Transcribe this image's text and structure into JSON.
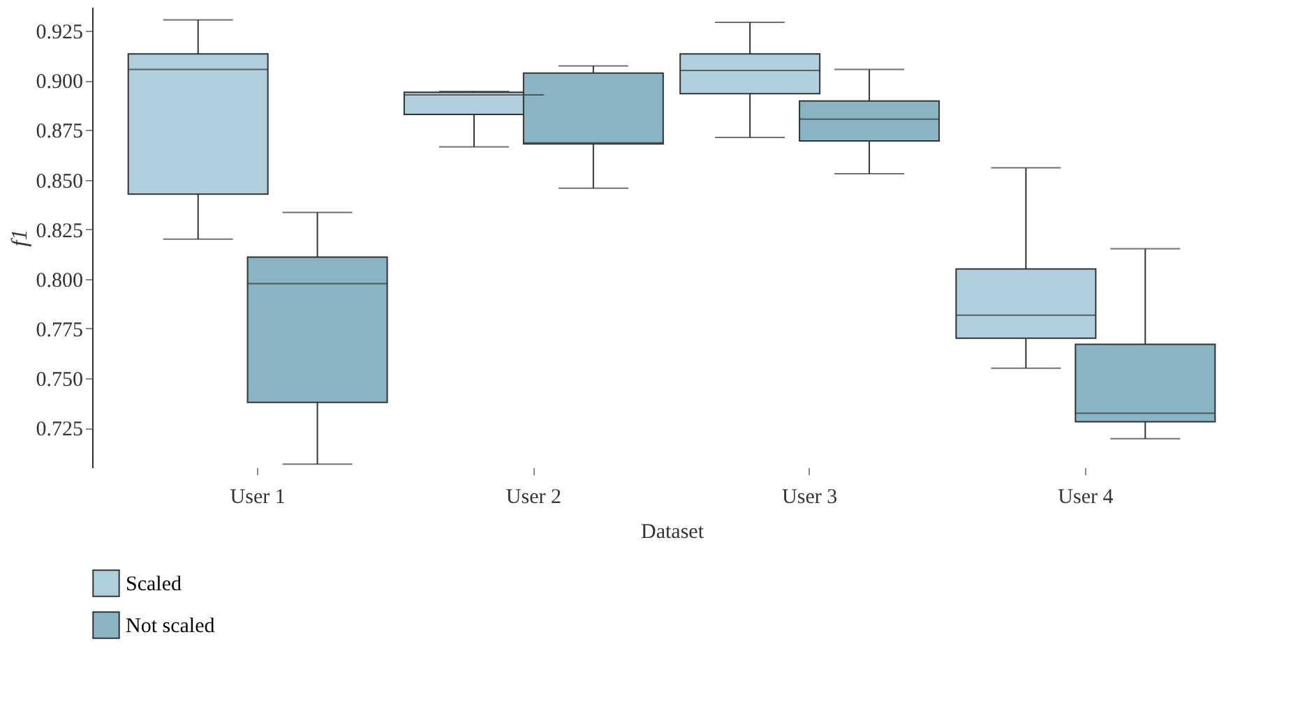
{
  "chart_data": {
    "type": "box",
    "xlabel": "Dataset",
    "ylabel": "f1",
    "categories": [
      "User 1",
      "User 2",
      "User 3",
      "User 4"
    ],
    "ylim": [
      0.705,
      0.937
    ],
    "yticks": [
      0.725,
      {
        "value": 0.75,
        "label": "0.750"
      },
      0.775,
      {
        "value": 0.8,
        "label": "0.800"
      },
      0.825,
      {
        "value": 0.85,
        "label": "0.850"
      },
      0.875,
      {
        "value": 0.9,
        "label": "0.900"
      },
      0.925
    ],
    "grid": false,
    "legend": "bottom left",
    "series": [
      {
        "name": "Scaled",
        "color": "#aecfdb",
        "boxes": [
          {
            "low": 0.82,
            "q1": 0.8427,
            "median": 0.9055,
            "q3": 0.9134,
            "high": 0.9305
          },
          {
            "low": 0.8665,
            "q1": 0.8829,
            "median": 0.8927,
            "q3": 0.894,
            "high": 0.8945
          },
          {
            "low": 0.8713,
            "q1": 0.8933,
            "median": 0.905,
            "q3": 0.9134,
            "high": 0.9293
          },
          {
            "low": 0.755,
            "q1": 0.7701,
            "median": 0.7817,
            "q3": 0.805,
            "high": 0.856
          }
        ]
      },
      {
        "name": "Not scaled",
        "color": "#88b4c4",
        "boxes": [
          {
            "low": 0.7067,
            "q1": 0.7378,
            "median": 0.7976,
            "q3": 0.811,
            "high": 0.8335
          },
          {
            "low": 0.8457,
            "q1": 0.868,
            "median": 0.8685,
            "q3": 0.9037,
            "high": 0.9073
          },
          {
            "low": 0.853,
            "q1": 0.8695,
            "median": 0.8805,
            "q3": 0.8896,
            "high": 0.9055
          },
          {
            "low": 0.7195,
            "q1": 0.728,
            "median": 0.7323,
            "q3": 0.767,
            "high": 0.8152
          }
        ]
      }
    ]
  }
}
